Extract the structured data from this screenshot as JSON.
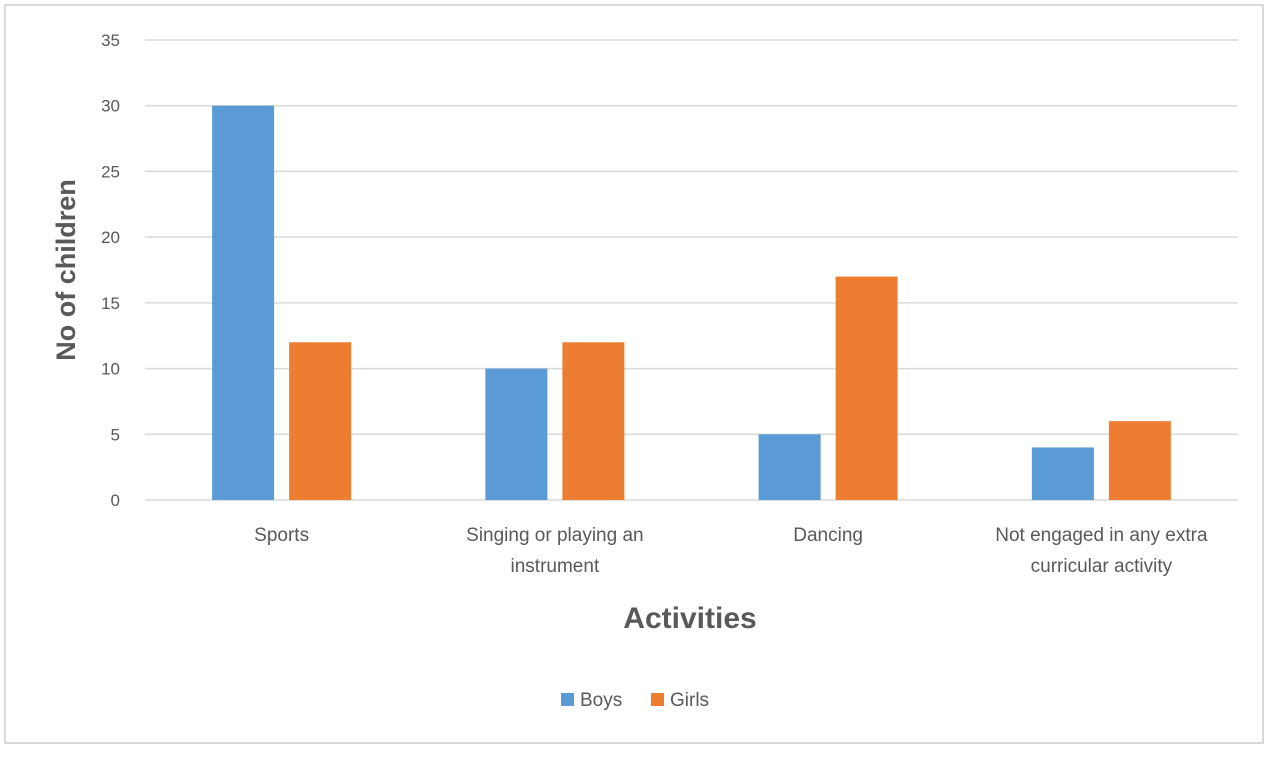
{
  "chart_data": {
    "type": "bar",
    "categories": [
      [
        "Sports"
      ],
      [
        "Singing or playing an",
        "instrument"
      ],
      [
        "Dancing"
      ],
      [
        "Not engaged in any extra",
        "curricular activity"
      ]
    ],
    "series": [
      {
        "name": "Boys",
        "values": [
          30,
          10,
          5,
          4
        ],
        "color": "#5b9bd5"
      },
      {
        "name": "Girls",
        "values": [
          12,
          12,
          17,
          6
        ],
        "color": "#ed7d31"
      }
    ],
    "title": "",
    "xlabel": "Activities",
    "ylabel": "No of children",
    "ylim": [
      0,
      35
    ],
    "yticks": [
      0,
      5,
      10,
      15,
      20,
      25,
      30,
      35
    ],
    "grid": true,
    "legend_position": "bottom",
    "gridline_color": "#d9d9d9"
  }
}
